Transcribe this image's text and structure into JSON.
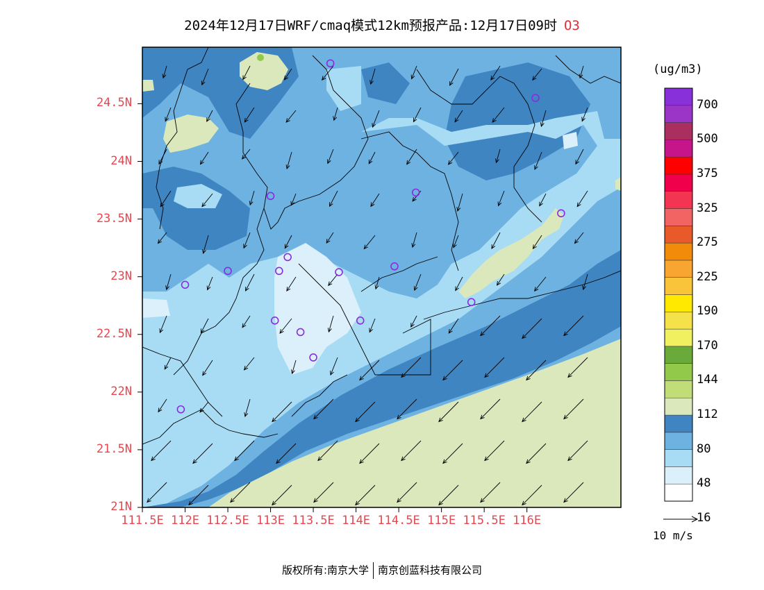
{
  "title": {
    "text": "2024年12月17日WRF/cmaq模式12km预报产品:12月17日09时",
    "pollutant": "O3"
  },
  "map": {
    "lat_labels": [
      "24.5N",
      "24N",
      "23.5N",
      "23N",
      "22.5N",
      "22N",
      "21.5N",
      "21N"
    ],
    "lon_labels": [
      "111.5E",
      "112E",
      "112.5E",
      "113E",
      "113.5E",
      "114E",
      "114.5E",
      "115E",
      "115.5E",
      "116E"
    ],
    "lat_values": [
      24.5,
      24,
      23.5,
      23,
      22.5,
      22,
      21.5,
      21
    ],
    "lon_values": [
      111.5,
      112,
      112.5,
      113,
      113.5,
      114,
      114.5,
      115,
      115.5,
      116
    ],
    "station_marker_color": "#8a2be2",
    "stations": [
      [
        113.7,
        24.85
      ],
      [
        116.1,
        24.55
      ],
      [
        113.0,
        23.7
      ],
      [
        114.7,
        23.73
      ],
      [
        116.4,
        23.55
      ],
      [
        113.2,
        23.17
      ],
      [
        113.1,
        23.05
      ],
      [
        112.5,
        23.05
      ],
      [
        113.8,
        23.04
      ],
      [
        114.45,
        23.09
      ],
      [
        112.0,
        22.93
      ],
      [
        115.35,
        22.78
      ],
      [
        113.05,
        22.62
      ],
      [
        113.35,
        22.52
      ],
      [
        114.05,
        22.62
      ],
      [
        113.5,
        22.3
      ],
      [
        111.95,
        21.85
      ]
    ]
  },
  "legend": {
    "unit": "(ug/m3)",
    "labels": [
      "700",
      "500",
      "375",
      "325",
      "275",
      "225",
      "190",
      "170",
      "144",
      "112",
      "80",
      "48",
      "16"
    ],
    "colors": [
      "#ffffff",
      "#dcf0fb",
      "#a8dcf5",
      "#6eb2e2",
      "#3f85c2",
      "#dbe8bb",
      "#c1dd78",
      "#92c94a",
      "#6aaa3a",
      "#f0f060",
      "#f5e24a",
      "#ffe900",
      "#f9c33a",
      "#f8a531",
      "#f28a0a",
      "#e85a2a",
      "#f26464",
      "#f43552",
      "#f0004a",
      "#ff0000",
      "#c6158a",
      "#aa2f5e",
      "#9a35c8",
      "#8830da"
    ]
  },
  "wind": {
    "reference_label": "10 m/s"
  },
  "footer": {
    "left": "版权所有:南京大学",
    "right": "南京创蓝科技有限公司"
  }
}
